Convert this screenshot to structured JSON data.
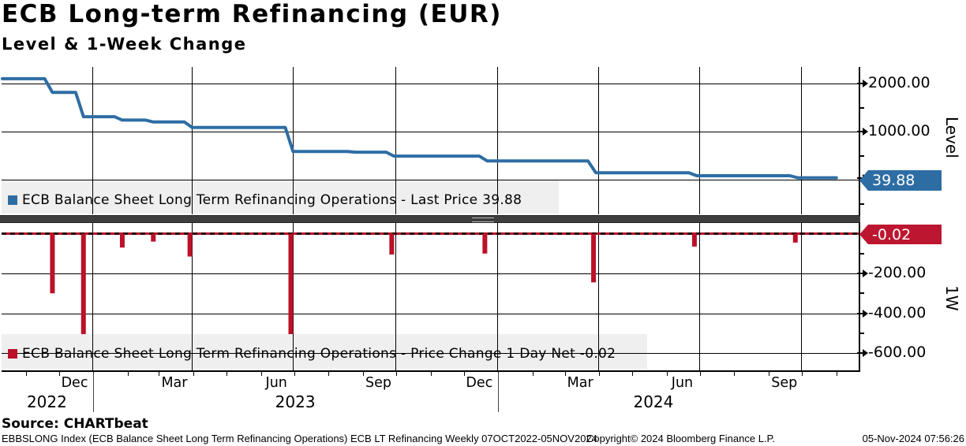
{
  "header": {
    "title": "ECB Long-term Refinancing (EUR)",
    "subtitle": "Level & 1-Week Change"
  },
  "colors": {
    "line_blue": "#2e6da4",
    "bar_red": "#bb1129",
    "badge_blue": "#2e6da4",
    "badge_red": "#bd1630",
    "legend_band": "#efefef",
    "separator": "#3e3e3e",
    "grid": "#000000"
  },
  "top_panel": {
    "axis_label": "Level",
    "badge_value": "39.88",
    "yticks": [
      {
        "label": "2000.00",
        "value": 2000
      },
      {
        "label": "1000.00",
        "value": 1000
      }
    ],
    "minor_tick_values": [
      1500,
      500,
      -500
    ],
    "legend": {
      "text": "ECB Balance Sheet Long Term Refinancing Operations - Last Price 39.88"
    }
  },
  "bottom_panel": {
    "axis_label": "1W",
    "badge_value": "-0.02",
    "yticks": [
      {
        "label": "-200.00",
        "value": -200
      },
      {
        "label": "-400.00",
        "value": -400
      },
      {
        "label": "-600.00",
        "value": -600
      }
    ],
    "minor_tick_values": [
      -100,
      -300,
      -500
    ],
    "legend": {
      "text": "ECB Balance Sheet Long Term Refinancing Operations - Price Change 1 Day Net -0.02"
    }
  },
  "x_axis": {
    "quarter_gridlines": [
      "2022-12-31",
      "2023-03-31",
      "2023-06-30",
      "2023-09-30",
      "2023-12-31",
      "2024-03-31",
      "2024-06-30",
      "2024-09-30"
    ],
    "month_tick_dates": [
      "2022-11-01",
      "2022-12-01",
      "2023-01-01",
      "2023-02-01",
      "2023-03-01",
      "2023-04-01",
      "2023-05-01",
      "2023-06-01",
      "2023-07-01",
      "2023-08-01",
      "2023-09-01",
      "2023-10-01",
      "2023-11-01",
      "2023-12-01",
      "2024-01-01",
      "2024-02-01",
      "2024-03-01",
      "2024-04-01",
      "2024-05-01",
      "2024-06-01",
      "2024-07-01",
      "2024-08-01",
      "2024-09-01",
      "2024-10-01",
      "2024-11-01"
    ],
    "month_labels": [
      {
        "label": "Dec",
        "anchor": "2022-12-15"
      },
      {
        "label": "Mar",
        "anchor": "2023-03-15"
      },
      {
        "label": "Jun",
        "anchor": "2023-06-15"
      },
      {
        "label": "Sep",
        "anchor": "2023-09-15"
      },
      {
        "label": "Dec",
        "anchor": "2023-12-15"
      },
      {
        "label": "Mar",
        "anchor": "2024-03-15"
      },
      {
        "label": "Jun",
        "anchor": "2024-06-15"
      },
      {
        "label": "Sep",
        "anchor": "2024-09-15"
      }
    ],
    "year_labels": [
      {
        "label": "2022",
        "anchor": "2022-11-20"
      },
      {
        "label": "2023",
        "anchor": "2023-07-02"
      },
      {
        "label": "2024",
        "anchor": "2024-05-20"
      }
    ],
    "year_dividers": [
      "2023-01-01",
      "2024-01-01"
    ]
  },
  "footer": {
    "source": "Source: CHARTbeat",
    "left": "EBBSLONG Index (ECB Balance Sheet Long Term Refinancing Operations) ECB LT Refinancing  Weekly 07OCT2022-05NOV2024",
    "copyright": "Copyright© 2024 Bloomberg Finance L.P.",
    "timestamp": "05-Nov-2024 07:56:26"
  },
  "chart_data": [
    {
      "type": "line",
      "name": "ECB Balance Sheet Long Term Refinancing Operations - Last Price",
      "frequency": "weekly",
      "date_range": [
        "2022-10-07",
        "2024-11-05"
      ],
      "last_value": 39.88,
      "ylim": [
        -150,
        2350
      ],
      "yticks": [
        1000,
        2000
      ],
      "breakpoints": [
        [
          "2022-10-07",
          2100
        ],
        [
          "2022-11-25",
          1815
        ],
        [
          "2022-12-23",
          1310
        ],
        [
          "2023-01-27",
          1240
        ],
        [
          "2023-02-24",
          1200
        ],
        [
          "2023-03-29",
          1085
        ],
        [
          "2023-06-28",
          585
        ],
        [
          "2023-08-25",
          572
        ],
        [
          "2023-09-27",
          490
        ],
        [
          "2023-12-20",
          390
        ],
        [
          "2024-03-27",
          145
        ],
        [
          "2024-06-26",
          82
        ],
        [
          "2024-09-25",
          39.88
        ]
      ]
    },
    {
      "type": "bar",
      "name": "ECB Balance Sheet Long Term Refinancing Operations - Price Change 1 Day Net",
      "frequency": "weekly",
      "date_range": [
        "2022-10-07",
        "2024-11-05"
      ],
      "last_value": -0.02,
      "default_weekly_value": -0.02,
      "ylim": [
        -700,
        60
      ],
      "yticks": [
        -200,
        -400,
        -600
      ],
      "events": [
        [
          "2022-11-25",
          -300
        ],
        [
          "2022-12-23",
          -505
        ],
        [
          "2023-01-27",
          -70
        ],
        [
          "2023-02-24",
          -40
        ],
        [
          "2023-03-29",
          -115
        ],
        [
          "2023-06-28",
          -505
        ],
        [
          "2023-09-27",
          -105
        ],
        [
          "2023-12-20",
          -100
        ],
        [
          "2024-03-27",
          -245
        ],
        [
          "2024-06-26",
          -65
        ],
        [
          "2024-09-25",
          -45
        ]
      ]
    }
  ]
}
